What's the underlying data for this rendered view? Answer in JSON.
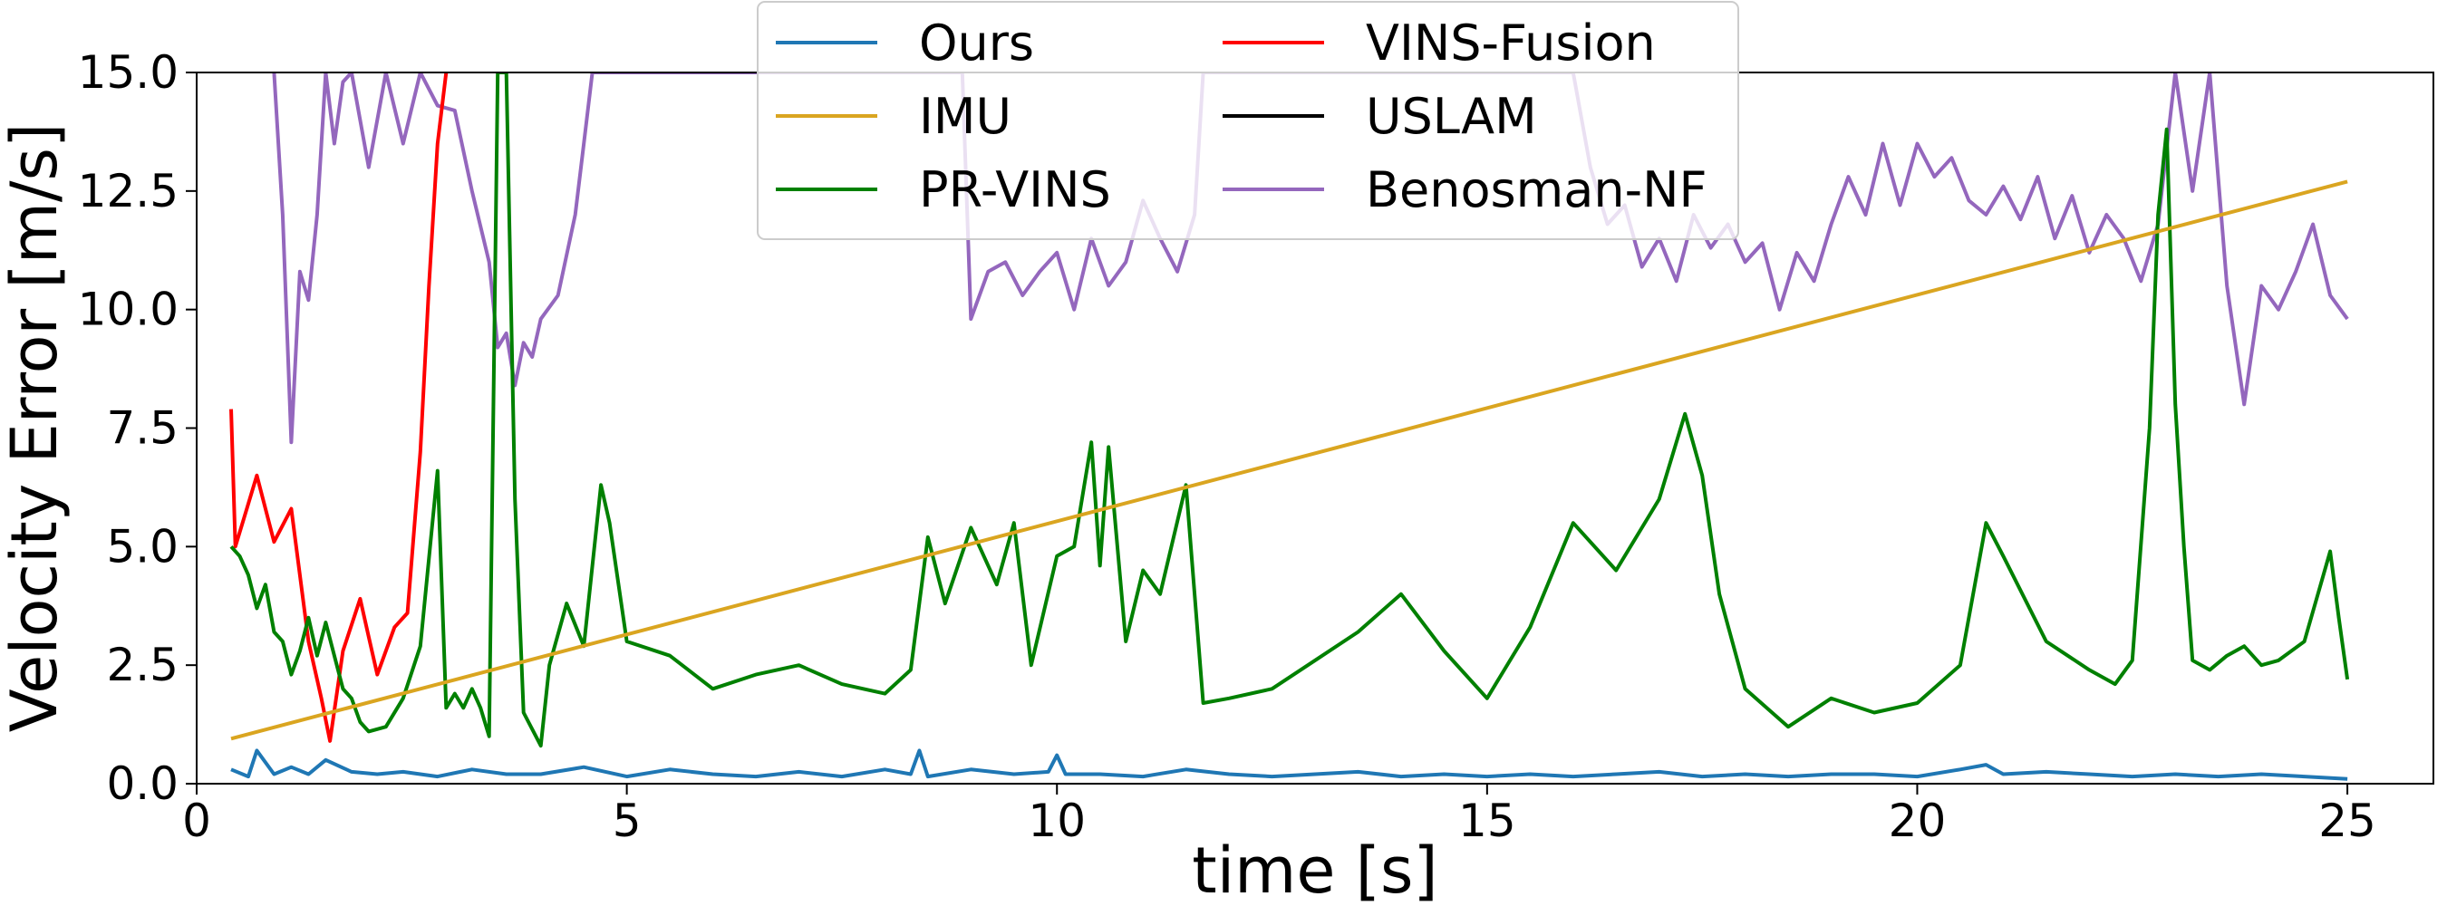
{
  "chart_data": {
    "type": "line",
    "title": "",
    "xlabel": "time [s]",
    "ylabel": "Velocity Error [m/s]",
    "xlim": [
      0,
      26
    ],
    "ylim": [
      0,
      15
    ],
    "xticks": [
      0,
      5,
      10,
      15,
      20,
      25
    ],
    "xtick_labels": [
      "0",
      "5",
      "10",
      "15",
      "20",
      "25"
    ],
    "yticks": [
      0,
      2.5,
      5,
      7.5,
      10,
      12.5,
      15
    ],
    "ytick_labels": [
      "0.0",
      "2.5",
      "5.0",
      "7.5",
      "10.0",
      "12.5",
      "15.0"
    ],
    "legend": {
      "placement": "top-center",
      "columns": 2
    },
    "series": [
      {
        "name": "Ours",
        "color": "#1f77b4",
        "x": [
          0.4,
          0.6,
          0.7,
          0.9,
          1.1,
          1.3,
          1.5,
          1.8,
          2.1,
          2.4,
          2.8,
          3.2,
          3.6,
          4.0,
          4.5,
          5.0,
          5.5,
          6.0,
          6.5,
          7.0,
          7.5,
          8.0,
          8.3,
          8.4,
          8.5,
          9.0,
          9.5,
          9.9,
          10.0,
          10.1,
          10.5,
          11.0,
          11.5,
          12.0,
          12.5,
          13.0,
          13.5,
          14.0,
          14.5,
          15.0,
          15.5,
          16.0,
          16.5,
          17.0,
          17.5,
          18.0,
          18.5,
          19.0,
          19.5,
          20.0,
          20.5,
          20.8,
          21.0,
          21.5,
          22.0,
          22.5,
          23.0,
          23.5,
          24.0,
          24.5,
          25.0
        ],
        "values": [
          0.3,
          0.15,
          0.7,
          0.2,
          0.35,
          0.2,
          0.5,
          0.25,
          0.2,
          0.25,
          0.15,
          0.3,
          0.2,
          0.2,
          0.35,
          0.15,
          0.3,
          0.2,
          0.15,
          0.25,
          0.15,
          0.3,
          0.2,
          0.7,
          0.15,
          0.3,
          0.2,
          0.25,
          0.6,
          0.2,
          0.2,
          0.15,
          0.3,
          0.2,
          0.15,
          0.2,
          0.25,
          0.15,
          0.2,
          0.15,
          0.2,
          0.15,
          0.2,
          0.25,
          0.15,
          0.2,
          0.15,
          0.2,
          0.2,
          0.15,
          0.3,
          0.4,
          0.2,
          0.25,
          0.2,
          0.15,
          0.2,
          0.15,
          0.2,
          0.15,
          0.1
        ]
      },
      {
        "name": "IMU",
        "color": "#daa520",
        "x": [
          0.4,
          25.0
        ],
        "values": [
          0.95,
          12.7
        ]
      },
      {
        "name": "PR-VINS",
        "color": "#008000",
        "x": [
          0.4,
          0.5,
          0.6,
          0.7,
          0.8,
          0.9,
          1.0,
          1.1,
          1.2,
          1.3,
          1.4,
          1.5,
          1.6,
          1.7,
          1.8,
          1.9,
          2.0,
          2.2,
          2.4,
          2.6,
          2.8,
          2.9,
          3.0,
          3.1,
          3.2,
          3.3,
          3.4,
          3.5,
          3.6,
          3.7,
          3.8,
          4.0,
          4.1,
          4.3,
          4.5,
          4.7,
          4.8,
          5.0,
          5.5,
          6.0,
          6.5,
          7.0,
          7.5,
          8.0,
          8.3,
          8.5,
          8.7,
          9.0,
          9.3,
          9.5,
          9.7,
          10.0,
          10.2,
          10.4,
          10.5,
          10.6,
          10.8,
          11.0,
          11.2,
          11.5,
          11.7,
          12.0,
          12.5,
          13.0,
          13.5,
          14.0,
          14.5,
          15.0,
          15.5,
          16.0,
          16.5,
          17.0,
          17.3,
          17.5,
          17.7,
          18.0,
          18.5,
          19.0,
          19.5,
          20.0,
          20.5,
          20.8,
          21.0,
          21.5,
          22.0,
          22.3,
          22.5,
          22.7,
          22.8,
          22.9,
          23.0,
          23.1,
          23.2,
          23.4,
          23.6,
          23.8,
          24.0,
          24.2,
          24.5,
          24.8,
          24.9,
          25.0
        ],
        "values": [
          5.0,
          4.8,
          4.4,
          3.7,
          4.2,
          3.2,
          3.0,
          2.3,
          2.8,
          3.5,
          2.7,
          3.4,
          2.7,
          2.0,
          1.8,
          1.3,
          1.1,
          1.2,
          1.8,
          2.9,
          6.6,
          1.6,
          1.9,
          1.6,
          2.0,
          1.6,
          1.0,
          15.0,
          15.0,
          6.0,
          1.5,
          0.8,
          2.5,
          3.8,
          2.9,
          6.3,
          5.5,
          3.0,
          2.7,
          2.0,
          2.3,
          2.5,
          2.1,
          1.9,
          2.4,
          5.2,
          3.8,
          5.4,
          4.2,
          5.5,
          2.5,
          4.8,
          5.0,
          7.2,
          4.6,
          7.1,
          3.0,
          4.5,
          4.0,
          6.3,
          1.7,
          1.8,
          2.0,
          2.6,
          3.2,
          4.0,
          2.8,
          1.8,
          3.3,
          5.5,
          4.5,
          6.0,
          7.8,
          6.5,
          4.0,
          2.0,
          1.2,
          1.8,
          1.5,
          1.7,
          2.5,
          5.5,
          4.8,
          3.0,
          2.4,
          2.1,
          2.6,
          7.5,
          12.0,
          13.8,
          8.0,
          5.0,
          2.6,
          2.4,
          2.7,
          2.9,
          2.5,
          2.6,
          3.0,
          4.9,
          3.5,
          2.2
        ]
      },
      {
        "name": "VINS-Fusion",
        "color": "#ff0000",
        "x": [
          0.4,
          0.45,
          0.55,
          0.7,
          0.9,
          1.1,
          1.3,
          1.45,
          1.55,
          1.7,
          1.9,
          2.0,
          2.1,
          2.3,
          2.45,
          2.6,
          2.7,
          2.8,
          2.9
        ],
        "values": [
          7.9,
          5.0,
          5.6,
          6.5,
          5.1,
          5.8,
          3.0,
          1.8,
          0.9,
          2.8,
          3.9,
          3.1,
          2.3,
          3.3,
          3.6,
          7.0,
          10.5,
          13.5,
          15.0
        ]
      },
      {
        "name": "USLAM",
        "color": "#000000",
        "x": [],
        "values": []
      },
      {
        "name": "Benosman-NF",
        "color": "#9467bd",
        "x": [
          0.9,
          1.0,
          1.1,
          1.2,
          1.3,
          1.4,
          1.5,
          1.6,
          1.7,
          1.8,
          2.0,
          2.2,
          2.4,
          2.6,
          2.8,
          3.0,
          3.2,
          3.4,
          3.5,
          3.6,
          3.7,
          3.8,
          3.9,
          4.0,
          4.2,
          4.4,
          4.5,
          4.6,
          8.9,
          9.0,
          9.2,
          9.4,
          9.6,
          9.8,
          10.0,
          10.2,
          10.4,
          10.6,
          10.8,
          11.0,
          11.2,
          11.4,
          11.6,
          11.7,
          16.0,
          16.2,
          16.4,
          16.6,
          16.8,
          17.0,
          17.2,
          17.4,
          17.6,
          17.8,
          18.0,
          18.2,
          18.4,
          18.6,
          18.8,
          19.0,
          19.2,
          19.4,
          19.6,
          19.8,
          20.0,
          20.2,
          20.4,
          20.6,
          20.8,
          21.0,
          21.2,
          21.4,
          21.6,
          21.8,
          22.0,
          22.2,
          22.4,
          22.6,
          22.8,
          23.0,
          23.2,
          23.4,
          23.6,
          23.8,
          24.0,
          24.2,
          24.4,
          24.6,
          24.8,
          25.0
        ],
        "values": [
          15.0,
          12.0,
          7.2,
          10.8,
          10.2,
          12.0,
          15.0,
          13.5,
          14.8,
          15.0,
          13.0,
          15.0,
          13.5,
          15.0,
          14.3,
          14.2,
          12.5,
          11.0,
          9.2,
          9.5,
          8.4,
          9.3,
          9.0,
          9.8,
          10.3,
          12.0,
          13.5,
          15.0,
          15.0,
          9.8,
          10.8,
          11.0,
          10.3,
          10.8,
          11.2,
          10.0,
          11.5,
          10.5,
          11.0,
          12.3,
          11.5,
          10.8,
          12.0,
          15.0,
          15.0,
          13.0,
          11.8,
          12.2,
          10.9,
          11.5,
          10.6,
          12.0,
          11.3,
          11.8,
          11.0,
          11.4,
          10.0,
          11.2,
          10.6,
          11.8,
          12.8,
          12.0,
          13.5,
          12.2,
          13.5,
          12.8,
          13.2,
          12.3,
          12.0,
          12.6,
          11.9,
          12.8,
          11.5,
          12.4,
          11.2,
          12.0,
          11.5,
          10.6,
          11.8,
          15.0,
          12.5,
          15.0,
          10.5,
          8.0,
          10.5,
          10.0,
          10.8,
          11.8,
          10.3,
          9.8
        ]
      }
    ]
  }
}
